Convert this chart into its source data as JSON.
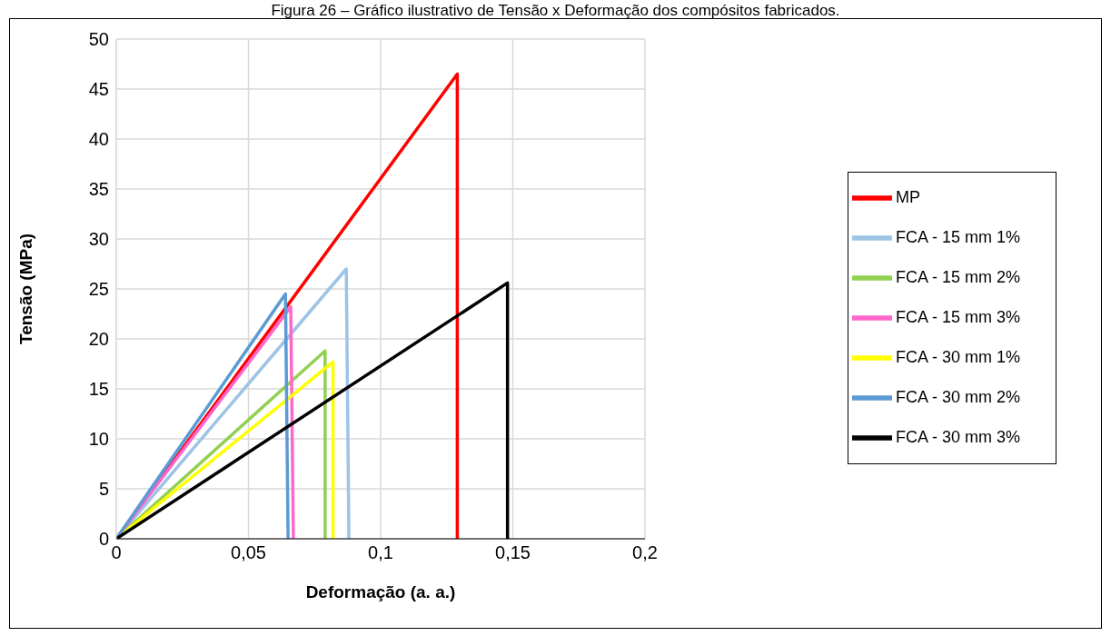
{
  "chart_data": {
    "type": "line",
    "title": "Figura 26 – Gráfico ilustrativo de Tensão x Deformação dos compósitos fabricados.",
    "xlabel": "Deformação (a. a.)",
    "ylabel": "Tensão (MPa)",
    "xlim": [
      0,
      0.2
    ],
    "ylim": [
      0,
      50
    ],
    "xticks": [
      0,
      {
        "value": 0.05,
        "label": "0,05"
      },
      {
        "value": 0.1,
        "label": "0,1"
      },
      {
        "value": 0.15,
        "label": "0,15"
      },
      {
        "value": 0.2,
        "label": "0,2"
      }
    ],
    "yticks": [
      0,
      5,
      10,
      15,
      20,
      25,
      30,
      35,
      40,
      45,
      50
    ],
    "grid": true,
    "legend": "right",
    "marker": "none",
    "line_style": "solid",
    "series": [
      {
        "name": "MP",
        "color": "#ff0000",
        "x": [
          0,
          0.129,
          0.129
        ],
        "values": [
          0,
          46.5,
          0
        ]
      },
      {
        "name": "FCA - 15 mm 1%",
        "color": "#9dc3e6",
        "x": [
          0,
          0.087,
          0.088
        ],
        "values": [
          0,
          27,
          0
        ]
      },
      {
        "name": "FCA - 15 mm 2%",
        "color": "#92d050",
        "x": [
          0,
          0.079,
          0.079
        ],
        "values": [
          0,
          18.8,
          0
        ]
      },
      {
        "name": "FCA - 15 mm 3%",
        "color": "#ff66cc",
        "x": [
          0,
          0.066,
          0.067
        ],
        "values": [
          0,
          23.2,
          0
        ]
      },
      {
        "name": "FCA - 30 mm 1%",
        "color": "#ffff00",
        "x": [
          0,
          0.082,
          0.082
        ],
        "values": [
          0,
          17.7,
          0
        ]
      },
      {
        "name": "FCA - 30 mm 2%",
        "color": "#5b9bd5",
        "x": [
          0,
          0.064,
          0.065
        ],
        "values": [
          0,
          24.5,
          0
        ]
      },
      {
        "name": "FCA - 30 mm 3%",
        "color": "#000000",
        "x": [
          0,
          0.148,
          0.148
        ],
        "values": [
          0,
          25.6,
          0
        ]
      }
    ]
  }
}
